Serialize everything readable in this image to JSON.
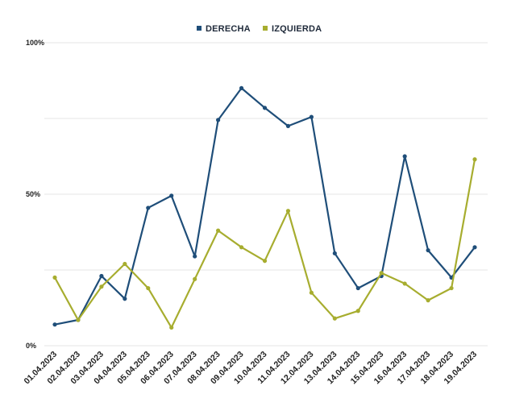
{
  "chart_data": {
    "type": "line",
    "title": "",
    "xlabel": "",
    "ylabel": "",
    "categories": [
      "01.04.2023",
      "02.04.2023",
      "03.04.2023",
      "04.04.2023",
      "05.04.2023",
      "06.04.2023",
      "07.04.2023",
      "08.04.2023",
      "09.04.2023",
      "10.04.2023",
      "11.04.2023",
      "12.04.2023",
      "13.04.2023",
      "14.04.2023",
      "15.04.2023",
      "16.04.2023",
      "17.04.2023",
      "18.04.2023",
      "19.04.2023"
    ],
    "ylim": [
      0,
      100
    ],
    "yticks": [
      0,
      25,
      50,
      75,
      100
    ],
    "ytick_labels": [
      "0%",
      "",
      "50%",
      "",
      "100%"
    ],
    "grid": true,
    "legend_position": "top-center",
    "series": [
      {
        "name": "DERECHA",
        "color": "#1f4e79",
        "values": [
          7,
          8.5,
          23,
          15.5,
          45.5,
          49.5,
          29.5,
          74.5,
          85,
          78.5,
          72.5,
          75.5,
          30.5,
          19,
          23,
          62.5,
          31.5,
          22.5,
          32.5
        ]
      },
      {
        "name": "IZQUIERDA",
        "color": "#a7ad2f",
        "values": [
          22.5,
          8.5,
          19.5,
          27,
          19,
          6,
          22,
          38,
          32.5,
          28,
          44.5,
          17.5,
          9,
          11.5,
          24,
          20.5,
          15,
          19,
          61.5
        ]
      }
    ]
  }
}
